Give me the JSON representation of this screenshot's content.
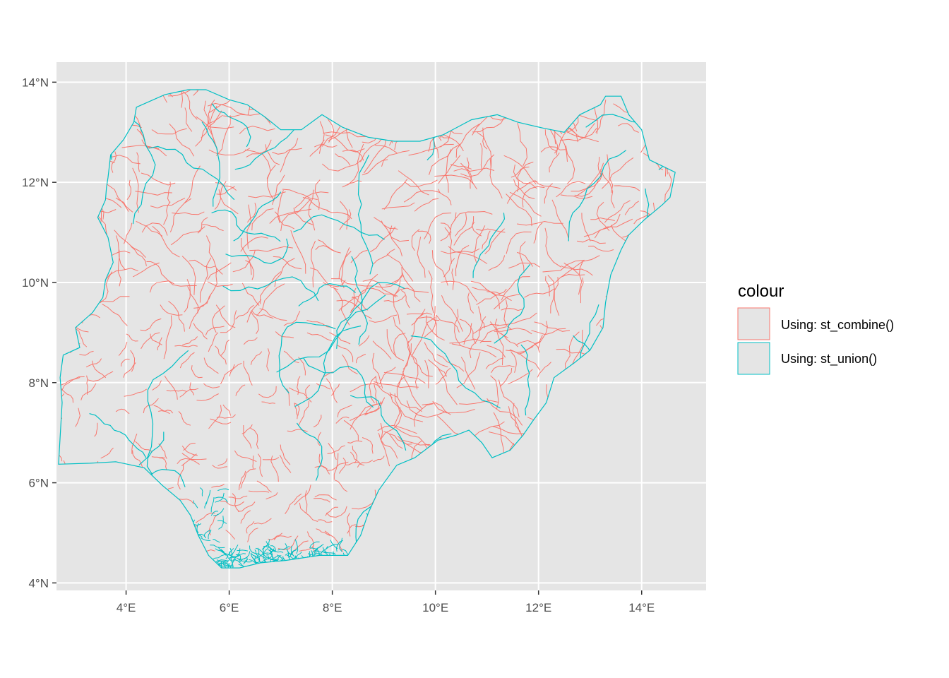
{
  "chart_data": {
    "type": "map",
    "region": "Nigeria administrative boundaries",
    "x_axis": {
      "ticks": [
        4,
        6,
        8,
        10,
        12,
        14
      ],
      "tick_labels": [
        "4°E",
        "6°E",
        "8°E",
        "10°E",
        "12°E",
        "14°E"
      ],
      "range": [
        2.65,
        15.25
      ]
    },
    "y_axis": {
      "ticks": [
        4,
        6,
        8,
        10,
        12,
        14
      ],
      "tick_labels": [
        "4°N",
        "6°N",
        "8°N",
        "10°N",
        "12°N",
        "14°N"
      ],
      "range": [
        3.85,
        14.4
      ]
    },
    "grid": true,
    "panel_background": "#e5e5e5",
    "legend": {
      "title": "colour",
      "position": "right",
      "entries": [
        {
          "label": "Using: st_combine()",
          "color": "#F8766D"
        },
        {
          "label": "Using: st_union()",
          "color": "#00BFC4"
        }
      ]
    },
    "outline": [
      [
        2.69,
        6.37
      ],
      [
        2.72,
        6.9
      ],
      [
        2.76,
        7.6
      ],
      [
        2.72,
        8.1
      ],
      [
        2.78,
        8.55
      ],
      [
        3.1,
        8.7
      ],
      [
        3.02,
        9.1
      ],
      [
        3.35,
        9.4
      ],
      [
        3.55,
        9.7
      ],
      [
        3.6,
        10.05
      ],
      [
        3.75,
        10.4
      ],
      [
        3.65,
        10.9
      ],
      [
        3.45,
        11.3
      ],
      [
        3.6,
        11.65
      ],
      [
        3.62,
        11.9
      ],
      [
        3.65,
        12.1
      ],
      [
        3.7,
        12.55
      ],
      [
        3.95,
        12.85
      ],
      [
        4.15,
        13.2
      ],
      [
        4.2,
        13.5
      ],
      [
        4.75,
        13.75
      ],
      [
        5.2,
        13.85
      ],
      [
        5.55,
        13.85
      ],
      [
        6.0,
        13.65
      ],
      [
        6.35,
        13.55
      ],
      [
        6.7,
        13.3
      ],
      [
        7.0,
        13.05
      ],
      [
        7.4,
        13.05
      ],
      [
        7.8,
        13.35
      ],
      [
        8.2,
        13.1
      ],
      [
        8.7,
        12.9
      ],
      [
        9.2,
        12.82
      ],
      [
        9.7,
        12.82
      ],
      [
        10.15,
        12.95
      ],
      [
        10.7,
        13.25
      ],
      [
        11.2,
        13.35
      ],
      [
        11.6,
        13.2
      ],
      [
        12.1,
        13.08
      ],
      [
        12.5,
        13.0
      ],
      [
        12.8,
        13.35
      ],
      [
        13.2,
        13.55
      ],
      [
        13.3,
        13.72
      ],
      [
        13.6,
        13.72
      ],
      [
        13.75,
        13.35
      ],
      [
        14.0,
        13.05
      ],
      [
        14.15,
        12.45
      ],
      [
        14.35,
        12.35
      ],
      [
        14.65,
        12.2
      ],
      [
        14.55,
        11.7
      ],
      [
        14.4,
        11.55
      ],
      [
        14.05,
        11.25
      ],
      [
        13.75,
        10.95
      ],
      [
        13.6,
        10.65
      ],
      [
        13.4,
        10.15
      ],
      [
        13.3,
        9.6
      ],
      [
        13.25,
        9.1
      ],
      [
        13.0,
        8.65
      ],
      [
        12.7,
        8.4
      ],
      [
        12.3,
        8.1
      ],
      [
        12.15,
        7.6
      ],
      [
        11.9,
        7.25
      ],
      [
        11.7,
        6.95
      ],
      [
        11.45,
        6.65
      ],
      [
        11.1,
        6.5
      ],
      [
        10.9,
        6.8
      ],
      [
        10.65,
        7.05
      ],
      [
        10.4,
        6.95
      ],
      [
        10.05,
        6.85
      ],
      [
        9.6,
        6.5
      ],
      [
        9.25,
        6.35
      ],
      [
        8.9,
        5.85
      ],
      [
        8.7,
        5.4
      ],
      [
        8.55,
        4.95
      ],
      [
        8.3,
        4.55
      ],
      [
        7.75,
        4.55
      ],
      [
        7.1,
        4.45
      ],
      [
        6.6,
        4.4
      ],
      [
        6.2,
        4.3
      ],
      [
        5.85,
        4.3
      ],
      [
        5.6,
        4.55
      ],
      [
        5.4,
        4.95
      ],
      [
        5.25,
        5.35
      ],
      [
        5.05,
        5.65
      ],
      [
        4.7,
        5.95
      ],
      [
        4.35,
        6.3
      ],
      [
        3.8,
        6.42
      ],
      [
        3.3,
        6.39
      ],
      [
        2.69,
        6.37
      ]
    ]
  }
}
